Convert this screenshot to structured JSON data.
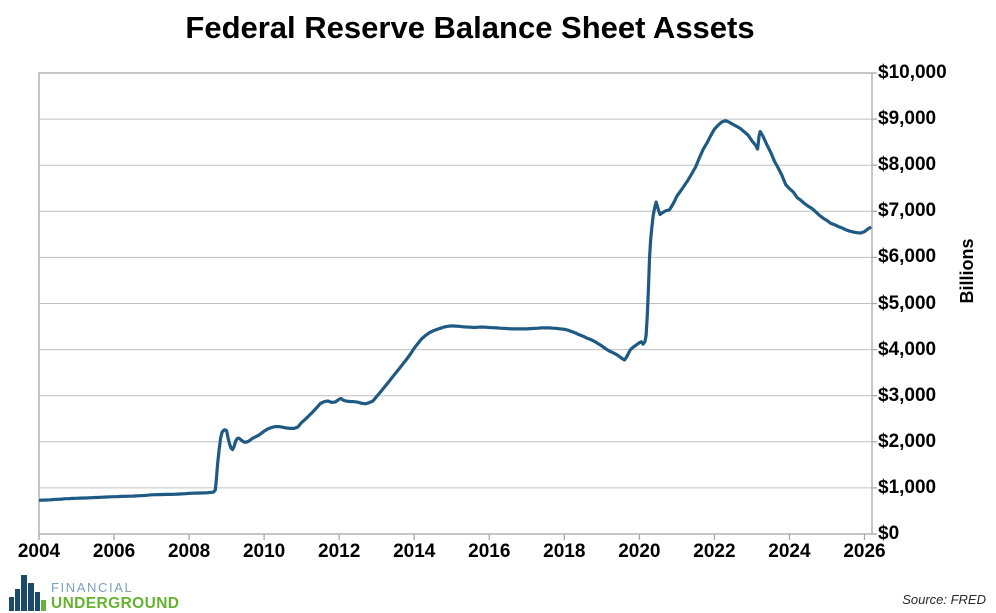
{
  "title": "Federal Reserve Balance Sheet Assets",
  "source": "Source: FRED",
  "logo": {
    "line1": "FINANCIAL",
    "line2": "UNDERGROUND"
  },
  "colors": {
    "line": "#1e5a83",
    "grid": "#c0c0c0",
    "border": "#a8a8a8",
    "tick": "#a8a8a8",
    "logo_blue_text": "#7d9fc4",
    "logo_green_text": "#65b32e",
    "logo_icon_navy": "#1b4a6b",
    "logo_icon_green": "#6ab23e"
  },
  "chart_data": {
    "type": "line",
    "title": "Federal Reserve Balance Sheet Assets",
    "xlabel": "",
    "ylabel": "Billions",
    "xlim": [
      2004,
      2026.2
    ],
    "ylim": [
      0,
      10000
    ],
    "grid": true,
    "legend": false,
    "x_ticks": [
      2004,
      2006,
      2008,
      2010,
      2012,
      2014,
      2016,
      2018,
      2020,
      2022,
      2024,
      2026
    ],
    "x_tick_labels": [
      "2004",
      "2006",
      "2008",
      "2010",
      "2012",
      "2014",
      "2016",
      "2018",
      "2020",
      "2022",
      "2024",
      "2026"
    ],
    "y_ticks": [
      0,
      1000,
      2000,
      3000,
      4000,
      5000,
      6000,
      7000,
      8000,
      9000,
      10000
    ],
    "y_tick_labels": [
      "$0",
      "$1,000",
      "$2,000",
      "$3,000",
      "$4,000",
      "$5,000",
      "$6,000",
      "$7,000",
      "$8,000",
      "$9,000",
      "$10,000"
    ],
    "series": [
      {
        "name": "Federal Reserve Balance Sheet Assets ($B)",
        "points": [
          [
            2004.0,
            732
          ],
          [
            2004.1,
            735
          ],
          [
            2004.2,
            738
          ],
          [
            2004.3,
            742
          ],
          [
            2004.4,
            748
          ],
          [
            2004.5,
            752
          ],
          [
            2004.6,
            758
          ],
          [
            2004.7,
            765
          ],
          [
            2004.8,
            768
          ],
          [
            2004.9,
            772
          ],
          [
            2005.0,
            775
          ],
          [
            2005.1,
            778
          ],
          [
            2005.2,
            780
          ],
          [
            2005.3,
            784
          ],
          [
            2005.4,
            788
          ],
          [
            2005.5,
            792
          ],
          [
            2005.6,
            795
          ],
          [
            2005.7,
            798
          ],
          [
            2005.8,
            802
          ],
          [
            2005.9,
            806
          ],
          [
            2006.0,
            810
          ],
          [
            2006.1,
            812
          ],
          [
            2006.2,
            815
          ],
          [
            2006.3,
            818
          ],
          [
            2006.4,
            820
          ],
          [
            2006.5,
            822
          ],
          [
            2006.6,
            826
          ],
          [
            2006.7,
            830
          ],
          [
            2006.8,
            835
          ],
          [
            2006.9,
            842
          ],
          [
            2007.0,
            850
          ],
          [
            2007.1,
            852
          ],
          [
            2007.2,
            855
          ],
          [
            2007.3,
            856
          ],
          [
            2007.4,
            858
          ],
          [
            2007.5,
            860
          ],
          [
            2007.6,
            862
          ],
          [
            2007.7,
            866
          ],
          [
            2007.8,
            870
          ],
          [
            2007.9,
            875
          ],
          [
            2008.0,
            880
          ],
          [
            2008.1,
            884
          ],
          [
            2008.2,
            888
          ],
          [
            2008.3,
            890
          ],
          [
            2008.4,
            892
          ],
          [
            2008.5,
            896
          ],
          [
            2008.6,
            902
          ],
          [
            2008.65,
            908
          ],
          [
            2008.7,
            960
          ],
          [
            2008.73,
            1220
          ],
          [
            2008.76,
            1520
          ],
          [
            2008.8,
            1820
          ],
          [
            2008.84,
            2080
          ],
          [
            2008.88,
            2210
          ],
          [
            2008.92,
            2250
          ],
          [
            2008.96,
            2260
          ],
          [
            2009.0,
            2240
          ],
          [
            2009.04,
            2080
          ],
          [
            2009.08,
            1950
          ],
          [
            2009.12,
            1860
          ],
          [
            2009.16,
            1830
          ],
          [
            2009.2,
            1900
          ],
          [
            2009.24,
            2010
          ],
          [
            2009.28,
            2070
          ],
          [
            2009.32,
            2080
          ],
          [
            2009.36,
            2060
          ],
          [
            2009.4,
            2030
          ],
          [
            2009.45,
            2000
          ],
          [
            2009.5,
            1990
          ],
          [
            2009.55,
            2000
          ],
          [
            2009.6,
            2020
          ],
          [
            2009.65,
            2050
          ],
          [
            2009.7,
            2080
          ],
          [
            2009.75,
            2100
          ],
          [
            2009.8,
            2120
          ],
          [
            2009.85,
            2140
          ],
          [
            2009.9,
            2170
          ],
          [
            2009.95,
            2200
          ],
          [
            2010.0,
            2230
          ],
          [
            2010.1,
            2280
          ],
          [
            2010.2,
            2310
          ],
          [
            2010.3,
            2330
          ],
          [
            2010.4,
            2330
          ],
          [
            2010.5,
            2315
          ],
          [
            2010.6,
            2300
          ],
          [
            2010.7,
            2290
          ],
          [
            2010.8,
            2290
          ],
          [
            2010.9,
            2320
          ],
          [
            2011.0,
            2420
          ],
          [
            2011.1,
            2490
          ],
          [
            2011.2,
            2570
          ],
          [
            2011.3,
            2650
          ],
          [
            2011.4,
            2740
          ],
          [
            2011.5,
            2830
          ],
          [
            2011.6,
            2870
          ],
          [
            2011.7,
            2885
          ],
          [
            2011.8,
            2855
          ],
          [
            2011.9,
            2865
          ],
          [
            2012.0,
            2925
          ],
          [
            2012.05,
            2940
          ],
          [
            2012.1,
            2905
          ],
          [
            2012.2,
            2880
          ],
          [
            2012.3,
            2875
          ],
          [
            2012.4,
            2870
          ],
          [
            2012.5,
            2860
          ],
          [
            2012.6,
            2835
          ],
          [
            2012.7,
            2825
          ],
          [
            2012.8,
            2850
          ],
          [
            2012.9,
            2885
          ],
          [
            2013.0,
            2985
          ],
          [
            2013.1,
            3080
          ],
          [
            2013.2,
            3180
          ],
          [
            2013.3,
            3280
          ],
          [
            2013.4,
            3385
          ],
          [
            2013.5,
            3485
          ],
          [
            2013.6,
            3585
          ],
          [
            2013.7,
            3690
          ],
          [
            2013.8,
            3795
          ],
          [
            2013.9,
            3905
          ],
          [
            2014.0,
            4030
          ],
          [
            2014.1,
            4135
          ],
          [
            2014.2,
            4235
          ],
          [
            2014.3,
            4305
          ],
          [
            2014.4,
            4365
          ],
          [
            2014.5,
            4405
          ],
          [
            2014.6,
            4435
          ],
          [
            2014.7,
            4465
          ],
          [
            2014.8,
            4490
          ],
          [
            2014.9,
            4505
          ],
          [
            2015.0,
            4515
          ],
          [
            2015.1,
            4510
          ],
          [
            2015.2,
            4505
          ],
          [
            2015.3,
            4495
          ],
          [
            2015.4,
            4490
          ],
          [
            2015.5,
            4485
          ],
          [
            2015.6,
            4480
          ],
          [
            2015.7,
            4485
          ],
          [
            2015.8,
            4490
          ],
          [
            2015.9,
            4485
          ],
          [
            2016.0,
            4480
          ],
          [
            2016.1,
            4475
          ],
          [
            2016.2,
            4470
          ],
          [
            2016.3,
            4465
          ],
          [
            2016.4,
            4460
          ],
          [
            2016.5,
            4455
          ],
          [
            2016.6,
            4450
          ],
          [
            2016.7,
            4450
          ],
          [
            2016.8,
            4450
          ],
          [
            2016.9,
            4450
          ],
          [
            2017.0,
            4450
          ],
          [
            2017.1,
            4455
          ],
          [
            2017.2,
            4460
          ],
          [
            2017.3,
            4465
          ],
          [
            2017.4,
            4470
          ],
          [
            2017.5,
            4470
          ],
          [
            2017.6,
            4470
          ],
          [
            2017.7,
            4465
          ],
          [
            2017.8,
            4460
          ],
          [
            2017.9,
            4450
          ],
          [
            2018.0,
            4440
          ],
          [
            2018.1,
            4420
          ],
          [
            2018.2,
            4390
          ],
          [
            2018.3,
            4360
          ],
          [
            2018.4,
            4320
          ],
          [
            2018.5,
            4290
          ],
          [
            2018.6,
            4250
          ],
          [
            2018.7,
            4220
          ],
          [
            2018.8,
            4180
          ],
          [
            2018.9,
            4130
          ],
          [
            2019.0,
            4080
          ],
          [
            2019.1,
            4020
          ],
          [
            2019.2,
            3970
          ],
          [
            2019.3,
            3930
          ],
          [
            2019.4,
            3890
          ],
          [
            2019.5,
            3830
          ],
          [
            2019.55,
            3800
          ],
          [
            2019.6,
            3775
          ],
          [
            2019.65,
            3825
          ],
          [
            2019.7,
            3900
          ],
          [
            2019.75,
            3985
          ],
          [
            2019.8,
            4030
          ],
          [
            2019.85,
            4060
          ],
          [
            2019.9,
            4090
          ],
          [
            2019.95,
            4120
          ],
          [
            2020.0,
            4150
          ],
          [
            2020.05,
            4170
          ],
          [
            2020.1,
            4120
          ],
          [
            2020.15,
            4180
          ],
          [
            2020.18,
            4310
          ],
          [
            2020.21,
            4700
          ],
          [
            2020.24,
            5300
          ],
          [
            2020.27,
            5970
          ],
          [
            2020.3,
            6370
          ],
          [
            2020.33,
            6620
          ],
          [
            2020.37,
            6910
          ],
          [
            2020.41,
            7080
          ],
          [
            2020.45,
            7200
          ],
          [
            2020.5,
            7050
          ],
          [
            2020.55,
            6930
          ],
          [
            2020.6,
            6960
          ],
          [
            2020.7,
            7010
          ],
          [
            2020.8,
            7030
          ],
          [
            2020.9,
            7160
          ],
          [
            2020.95,
            7240
          ],
          [
            2021.0,
            7330
          ],
          [
            2021.1,
            7440
          ],
          [
            2021.2,
            7560
          ],
          [
            2021.3,
            7680
          ],
          [
            2021.4,
            7820
          ],
          [
            2021.5,
            7960
          ],
          [
            2021.6,
            8160
          ],
          [
            2021.7,
            8340
          ],
          [
            2021.8,
            8480
          ],
          [
            2021.9,
            8640
          ],
          [
            2022.0,
            8780
          ],
          [
            2022.1,
            8870
          ],
          [
            2022.2,
            8940
          ],
          [
            2022.3,
            8965
          ],
          [
            2022.4,
            8930
          ],
          [
            2022.5,
            8880
          ],
          [
            2022.6,
            8840
          ],
          [
            2022.7,
            8790
          ],
          [
            2022.8,
            8720
          ],
          [
            2022.9,
            8650
          ],
          [
            2023.0,
            8530
          ],
          [
            2023.05,
            8480
          ],
          [
            2023.1,
            8430
          ],
          [
            2023.15,
            8350
          ],
          [
            2023.19,
            8640
          ],
          [
            2023.22,
            8730
          ],
          [
            2023.3,
            8620
          ],
          [
            2023.4,
            8440
          ],
          [
            2023.5,
            8280
          ],
          [
            2023.6,
            8090
          ],
          [
            2023.7,
            7940
          ],
          [
            2023.8,
            7780
          ],
          [
            2023.9,
            7580
          ],
          [
            2024.0,
            7490
          ],
          [
            2024.1,
            7420
          ],
          [
            2024.2,
            7300
          ],
          [
            2024.3,
            7240
          ],
          [
            2024.4,
            7170
          ],
          [
            2024.5,
            7110
          ],
          [
            2024.6,
            7060
          ],
          [
            2024.7,
            6990
          ],
          [
            2024.8,
            6910
          ],
          [
            2024.9,
            6850
          ],
          [
            2025.0,
            6800
          ],
          [
            2025.1,
            6740
          ],
          [
            2025.2,
            6710
          ],
          [
            2025.3,
            6670
          ],
          [
            2025.4,
            6640
          ],
          [
            2025.5,
            6600
          ],
          [
            2025.6,
            6570
          ],
          [
            2025.7,
            6550
          ],
          [
            2025.8,
            6535
          ],
          [
            2025.9,
            6530
          ],
          [
            2026.0,
            6560
          ],
          [
            2026.1,
            6620
          ],
          [
            2026.18,
            6660
          ]
        ]
      }
    ]
  }
}
